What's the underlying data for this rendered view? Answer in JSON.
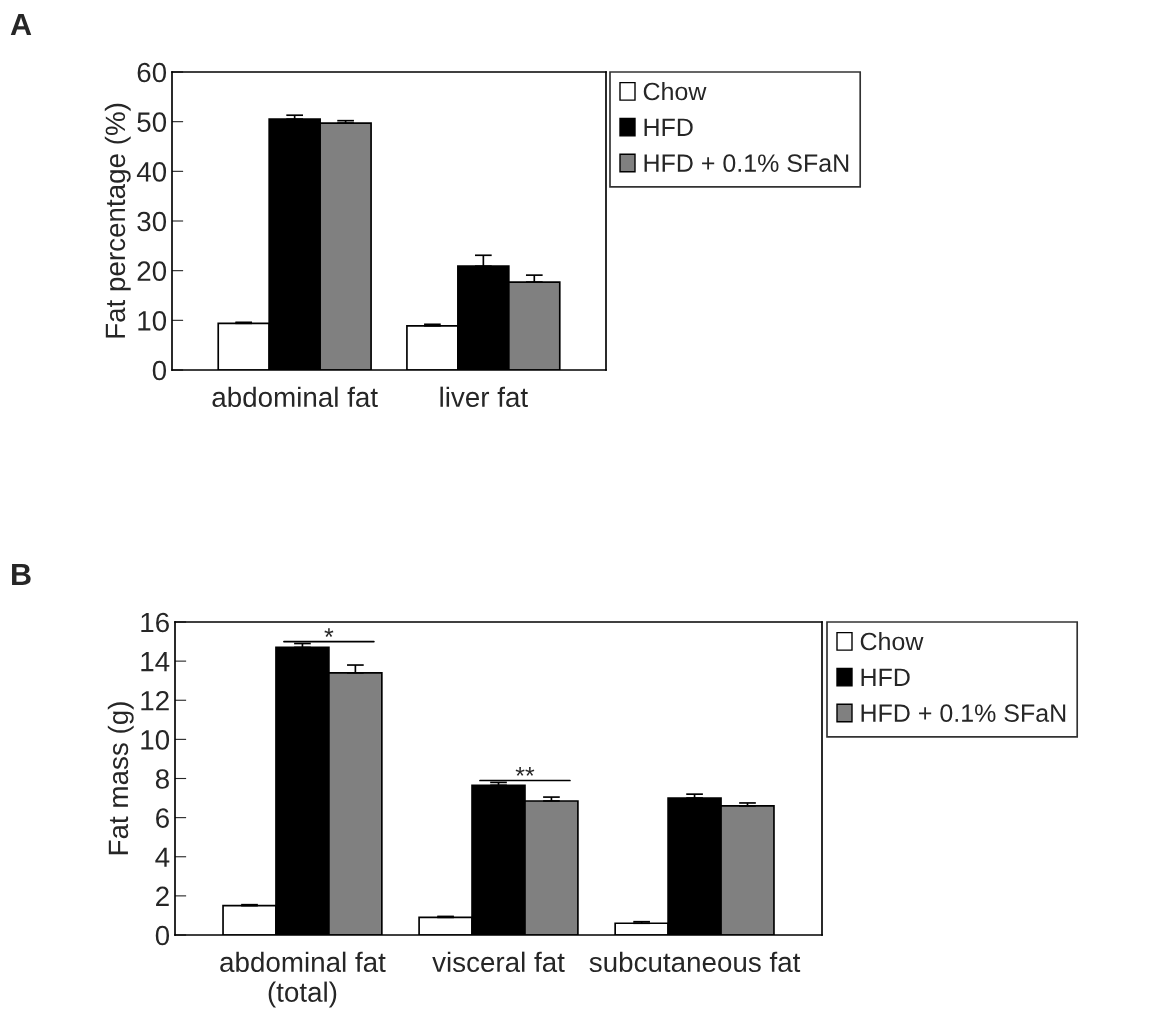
{
  "chart_data": [
    {
      "type": "bar",
      "title": "A",
      "ylabel": "Fat percentage (%)",
      "categories": [
        "abdominal fat",
        "liver fat"
      ],
      "series": [
        {
          "name": "Chow",
          "color": "#ffffff",
          "values": [
            9.4,
            8.9
          ],
          "errors": [
            [
              9.4,
              9.6
            ],
            [
              8.9,
              9.2
            ]
          ]
        },
        {
          "name": "HFD",
          "color": "#000000",
          "values": [
            50.5,
            20.9
          ],
          "errors": [
            [
              50.5,
              51.3
            ],
            [
              20.9,
              23.1
            ]
          ]
        },
        {
          "name": "HFD + 0.1% SFaN",
          "color": "#808080",
          "values": [
            49.7,
            17.7
          ],
          "errors": [
            [
              49.7,
              50.2
            ],
            [
              17.7,
              19.1
            ]
          ]
        }
      ],
      "ylim": [
        0,
        60
      ],
      "yticks": [
        0,
        10,
        20,
        30,
        40,
        50,
        60
      ],
      "grid": false,
      "legend": "top right"
    },
    {
      "type": "bar",
      "title": "B",
      "ylabel": "Fat mass (g)",
      "categories": [
        "abdominal fat\n(total)",
        "visceral fat",
        "subcutaneous fat"
      ],
      "series": [
        {
          "name": "Chow",
          "color": "#ffffff",
          "values": [
            1.5,
            0.9,
            0.6
          ],
          "errors": [
            [
              1.5,
              1.55
            ],
            [
              0.9,
              0.95
            ],
            [
              0.6,
              0.68
            ]
          ]
        },
        {
          "name": "HFD",
          "color": "#000000",
          "values": [
            14.7,
            7.65,
            7.0
          ],
          "errors": [
            [
              14.7,
              14.9
            ],
            [
              7.65,
              7.8
            ],
            [
              7.0,
              7.2
            ]
          ]
        },
        {
          "name": "HFD + 0.1% SFaN",
          "color": "#808080",
          "values": [
            13.4,
            6.85,
            6.6
          ],
          "errors": [
            [
              13.4,
              13.8
            ],
            [
              6.85,
              7.05
            ],
            [
              6.6,
              6.75
            ]
          ]
        }
      ],
      "annotations": [
        "*",
        "**"
      ],
      "ylim": [
        0,
        16
      ],
      "yticks": [
        0,
        2,
        4,
        6,
        8,
        10,
        12,
        14,
        16
      ],
      "grid": false,
      "legend": "top right"
    }
  ]
}
